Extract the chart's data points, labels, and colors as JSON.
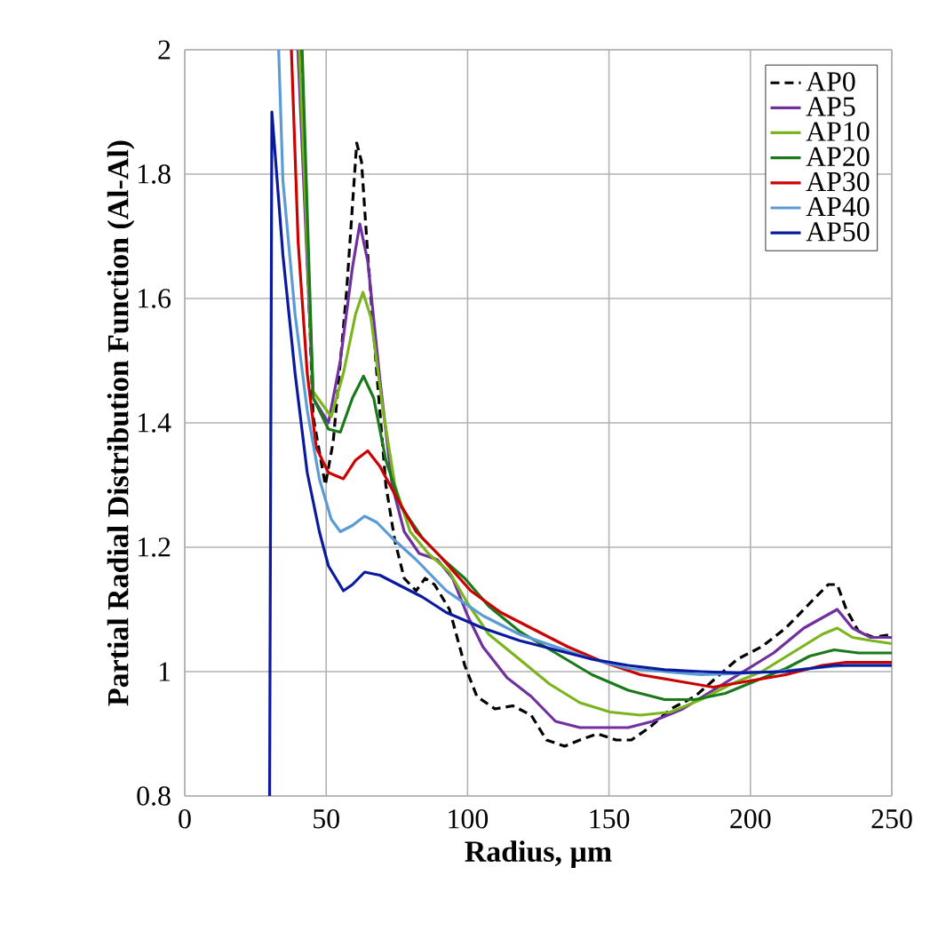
{
  "chart_data": {
    "type": "line",
    "xlabel": "Radius, µm",
    "ylabel": "Partial Radial Distribution Function (Al-Al)",
    "xlim": [
      0,
      250
    ],
    "xticks": [
      0,
      50,
      100,
      150,
      200,
      250
    ],
    "ylim": [
      0.8,
      2
    ],
    "yticks": [
      0.8,
      1,
      1.2,
      1.4,
      1.6,
      1.8,
      2
    ],
    "grid": true,
    "legend": "top right",
    "marker": "none",
    "line_style": "solid",
    "series": [
      {
        "name": "AP0",
        "color": "#000000",
        "line_style": "dashed",
        "x": [
          40.7,
          45.4,
          49.7,
          52.5,
          57.2,
          60.8,
          62.5,
          64.7,
          67.9,
          71.1,
          74.3,
          77.6,
          81.8,
          85,
          88.3,
          93.6,
          99,
          103.3,
          109.7,
          116,
          122.5,
          127.9,
          134.3,
          139.7,
          146,
          152.5,
          157.9,
          164.3,
          171.8,
          180.4,
          187.9,
          195.4,
          204,
          212.5,
          221,
          227.5,
          230.7,
          233.9,
          238.2,
          243.5,
          250
        ],
        "values": [
          2,
          1.41,
          1.3,
          1.37,
          1.61,
          1.85,
          1.82,
          1.67,
          1.48,
          1.3,
          1.21,
          1.15,
          1.13,
          1.15,
          1.14,
          1.1,
          1.01,
          0.96,
          0.94,
          0.945,
          0.93,
          0.89,
          0.88,
          0.89,
          0.9,
          0.89,
          0.89,
          0.91,
          0.94,
          0.96,
          0.99,
          1.02,
          1.04,
          1.07,
          1.11,
          1.14,
          1.14,
          1.1,
          1.065,
          1.055,
          1.06
        ]
      },
      {
        "name": "AP5",
        "color": "#7030a0",
        "x": [
          40,
          45.4,
          50.8,
          55,
          59.3,
          61.9,
          64.7,
          69,
          73.3,
          77.6,
          82.9,
          89.3,
          94.7,
          100,
          105.4,
          114,
          122.5,
          131.1,
          139.7,
          148.2,
          156.8,
          165.4,
          176.1,
          186.8,
          197.5,
          208.2,
          218.9,
          230.7,
          236.1,
          242.5,
          250
        ],
        "values": [
          2,
          1.44,
          1.4,
          1.5,
          1.65,
          1.72,
          1.66,
          1.47,
          1.3,
          1.225,
          1.19,
          1.18,
          1.15,
          1.09,
          1.04,
          0.99,
          0.96,
          0.92,
          0.91,
          0.91,
          0.91,
          0.92,
          0.94,
          0.97,
          1.0,
          1.03,
          1.07,
          1.1,
          1.07,
          1.055,
          1.055
        ]
      },
      {
        "name": "AP10",
        "color": "#7ab51d",
        "x": [
          40.5,
          45.4,
          51.8,
          56.1,
          60.4,
          63,
          65.8,
          70.1,
          74.3,
          79.7,
          86.1,
          93.6,
          100,
          107.5,
          118.3,
          129,
          139.7,
          150.4,
          161.1,
          171.8,
          182.5,
          193.2,
          204,
          214.7,
          225.4,
          230.7,
          236.1,
          242.5,
          250
        ],
        "values": [
          2,
          1.45,
          1.41,
          1.48,
          1.575,
          1.61,
          1.57,
          1.42,
          1.3,
          1.225,
          1.19,
          1.16,
          1.11,
          1.06,
          1.02,
          0.98,
          0.95,
          0.935,
          0.93,
          0.935,
          0.955,
          0.98,
          1.0,
          1.03,
          1.06,
          1.07,
          1.055,
          1.05,
          1.045
        ]
      },
      {
        "name": "AP20",
        "color": "#1a7a1a",
        "x": [
          41.5,
          45.4,
          50.8,
          55,
          59.3,
          63.2,
          66.8,
          71.1,
          76.5,
          84,
          91.5,
          99,
          107.5,
          118.3,
          131.1,
          144,
          156.8,
          169.7,
          180.4,
          191.1,
          201.8,
          212.5,
          221,
          229.6,
          238.2,
          250
        ],
        "values": [
          2,
          1.44,
          1.39,
          1.385,
          1.44,
          1.475,
          1.44,
          1.34,
          1.265,
          1.215,
          1.18,
          1.15,
          1.105,
          1.065,
          1.03,
          0.995,
          0.97,
          0.955,
          0.955,
          0.965,
          0.985,
          1.005,
          1.025,
          1.035,
          1.03,
          1.03
        ]
      },
      {
        "name": "AP30",
        "color": "#cc0000",
        "x": [
          37.7,
          40.1,
          43.3,
          46.5,
          50.8,
          56.1,
          60.4,
          64.7,
          69,
          74.3,
          81.8,
          90.4,
          101.1,
          111.8,
          122.5,
          135.4,
          148.2,
          161.1,
          174,
          186.8,
          199.7,
          212.5,
          225.4,
          233.9,
          250
        ],
        "values": [
          2,
          1.69,
          1.48,
          1.36,
          1.32,
          1.31,
          1.34,
          1.355,
          1.33,
          1.285,
          1.225,
          1.185,
          1.13,
          1.095,
          1.07,
          1.04,
          1.015,
          0.995,
          0.985,
          0.975,
          0.985,
          0.995,
          1.01,
          1.015,
          1.015
        ]
      },
      {
        "name": "AP40",
        "color": "#5b9bd5",
        "x": [
          33.2,
          34.7,
          39,
          43.3,
          47.6,
          51.8,
          55,
          59.3,
          63.6,
          67.9,
          73.3,
          81.8,
          92.5,
          105.4,
          118.3,
          131.1,
          144,
          156.8,
          169.7,
          182.5,
          195.4,
          208.2,
          221,
          233.9,
          250
        ],
        "values": [
          2,
          1.79,
          1.575,
          1.42,
          1.31,
          1.245,
          1.225,
          1.235,
          1.25,
          1.24,
          1.215,
          1.18,
          1.13,
          1.09,
          1.06,
          1.04,
          1.02,
          1.005,
          1.0,
          0.995,
          0.997,
          1.0,
          1.005,
          1.01,
          1.01
        ]
      },
      {
        "name": "AP50",
        "color": "#0a1a9e",
        "x": [
          30,
          30.8,
          34.7,
          39,
          43.3,
          47.6,
          50.8,
          56.1,
          59.3,
          63.6,
          69,
          75.4,
          84,
          92.5,
          105.4,
          118.3,
          131.1,
          144,
          156.8,
          169.7,
          182.5,
          195.4,
          212.5,
          229.6,
          250
        ],
        "values": [
          0.8,
          1.9,
          1.67,
          1.48,
          1.32,
          1.225,
          1.17,
          1.13,
          1.14,
          1.16,
          1.155,
          1.14,
          1.12,
          1.095,
          1.07,
          1.05,
          1.035,
          1.02,
          1.01,
          1.003,
          1.0,
          0.998,
          1.0,
          1.01,
          1.01
        ]
      }
    ]
  }
}
